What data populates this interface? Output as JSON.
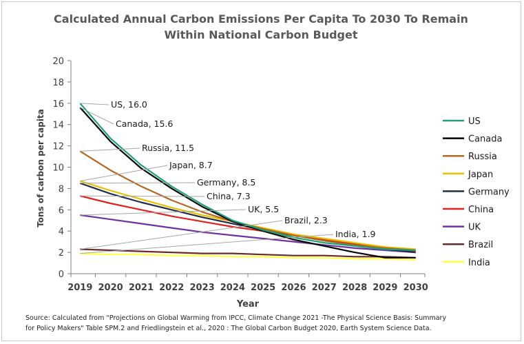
{
  "chart_data": {
    "type": "line",
    "title": "Calculated Annual Carbon Emissions Per Capita To 2030 To Remain\nWithin National Carbon Budget",
    "xlabel": "Year",
    "ylabel": "Tons of carbon per capita",
    "x": [
      2019,
      2020,
      2021,
      2022,
      2023,
      2024,
      2025,
      2026,
      2027,
      2028,
      2029,
      2030
    ],
    "ylim": [
      0,
      20
    ],
    "yticks": [
      0,
      2,
      4,
      6,
      8,
      10,
      12,
      14,
      16,
      18,
      20
    ],
    "grid": false,
    "legend_position": "right",
    "series": [
      {
        "name": "US",
        "color": "#1aa37a",
        "values": [
          16.0,
          12.7,
          10.2,
          8.2,
          6.5,
          5.0,
          4.1,
          3.4,
          2.9,
          2.6,
          2.3,
          2.2
        ],
        "label": "US,  16.0"
      },
      {
        "name": "Canada",
        "color": "#000000",
        "values": [
          15.6,
          12.4,
          9.9,
          8.0,
          6.3,
          4.9,
          4.0,
          3.2,
          2.6,
          2.0,
          1.5,
          1.5
        ],
        "label": "Canada, 15.6"
      },
      {
        "name": "Russia",
        "color": "#b5651d",
        "values": [
          11.5,
          9.7,
          8.2,
          6.9,
          5.8,
          4.9,
          4.2,
          3.6,
          3.1,
          2.7,
          2.4,
          2.2
        ],
        "label": "Russia, 11.5"
      },
      {
        "name": "Japan",
        "color": "#e8c000",
        "values": [
          8.7,
          7.8,
          7.0,
          6.2,
          5.5,
          4.9,
          4.3,
          3.7,
          3.3,
          2.9,
          2.5,
          2.3
        ],
        "label": "Japan, 8.7"
      },
      {
        "name": "Germany",
        "color": "#1f2d4a",
        "values": [
          8.5,
          7.5,
          6.7,
          6.0,
          5.3,
          4.7,
          4.1,
          3.6,
          3.1,
          2.7,
          2.3,
          2.0
        ],
        "label": "Germany, 8.5"
      },
      {
        "name": "China",
        "color": "#e0201b",
        "values": [
          7.3,
          6.6,
          6.0,
          5.4,
          4.9,
          4.4,
          4.0,
          3.6,
          3.2,
          2.8,
          2.4,
          2.1
        ],
        "label": "China,  7.3"
      },
      {
        "name": "UK",
        "color": "#7030a0",
        "values": [
          5.5,
          5.1,
          4.7,
          4.3,
          3.9,
          3.6,
          3.3,
          3.0,
          2.7,
          2.4,
          2.2,
          2.0
        ],
        "label": "UK, 5.5"
      },
      {
        "name": "Brazil",
        "color": "#6b2a2a",
        "values": [
          2.3,
          2.2,
          2.1,
          2.0,
          1.9,
          1.9,
          1.8,
          1.7,
          1.7,
          1.6,
          1.6,
          1.5
        ],
        "label": "Brazil, 2.3"
      },
      {
        "name": "India",
        "color": "#ffff40",
        "values": [
          1.9,
          1.8,
          1.8,
          1.7,
          1.7,
          1.6,
          1.6,
          1.5,
          1.5,
          1.4,
          1.4,
          1.3
        ],
        "label": "India, 1.9"
      }
    ],
    "source_note": "Source: Calculated from \"Projections on Global Warming from IPCC, Climate Change 2021 -The Physical Science Basis: Summary\nfor Policy Makers\" Table SPM.2 and Friedlingstein et al., 2020 : The Global Carbon Budget 2020, Earth System Science Data."
  }
}
